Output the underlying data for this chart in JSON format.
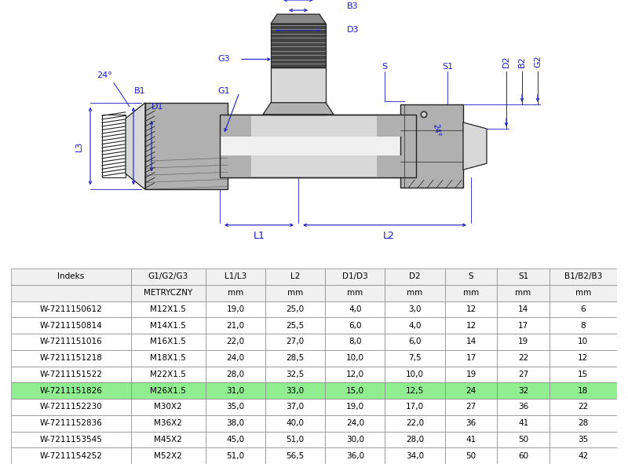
{
  "table_headers": [
    "Indeks",
    "G1/G2/G3",
    "L1/L3",
    "L2",
    "D1/D3",
    "D2",
    "S",
    "S1",
    "B1/B2/B3"
  ],
  "table_subheaders": [
    "",
    "METRYCZNY",
    "mm",
    "mm",
    "mm",
    "mm",
    "mm",
    "mm",
    "mm"
  ],
  "table_data": [
    [
      "W-7211150612",
      "M12X1.5",
      "19,0",
      "25,0",
      "4,0",
      "3,0",
      "12",
      "14",
      "6"
    ],
    [
      "W-7211150814",
      "M14X1.5",
      "21,0",
      "25,5",
      "6,0",
      "4,0",
      "12",
      "17",
      "8"
    ],
    [
      "W-7211151016",
      "M16X1.5",
      "22,0",
      "27,0",
      "8,0",
      "6,0",
      "14",
      "19",
      "10"
    ],
    [
      "W-7211151218",
      "M18X1.5",
      "24,0",
      "28,5",
      "10,0",
      "7,5",
      "17",
      "22",
      "12"
    ],
    [
      "W-7211151522",
      "M22X1.5",
      "28,0",
      "32,5",
      "12,0",
      "10,0",
      "19",
      "27",
      "15"
    ],
    [
      "W-7211151826",
      "M26X1.5",
      "31,0",
      "33,0",
      "15,0",
      "12,5",
      "24",
      "32",
      "18"
    ],
    [
      "W-7211152230",
      "M30X2",
      "35,0",
      "37,0",
      "19,0",
      "17,0",
      "27",
      "36",
      "22"
    ],
    [
      "W-7211152836",
      "M36X2",
      "38,0",
      "40,0",
      "24,0",
      "22,0",
      "36",
      "41",
      "28"
    ],
    [
      "W-7211153545",
      "M45X2",
      "45,0",
      "51,0",
      "30,0",
      "28,0",
      "41",
      "50",
      "35"
    ],
    [
      "W-7211154252",
      "M52X2",
      "51,0",
      "56,5",
      "36,0",
      "34,0",
      "50",
      "60",
      "42"
    ]
  ],
  "highlighted_row": 5,
  "highlight_color": "#90EE90",
  "dim_color": "#1a1acc",
  "line_color": "#222222",
  "bg_color": "#ffffff",
  "col_widths": [
    1.6,
    1.0,
    0.8,
    0.8,
    0.8,
    0.8,
    0.7,
    0.7,
    0.9
  ]
}
